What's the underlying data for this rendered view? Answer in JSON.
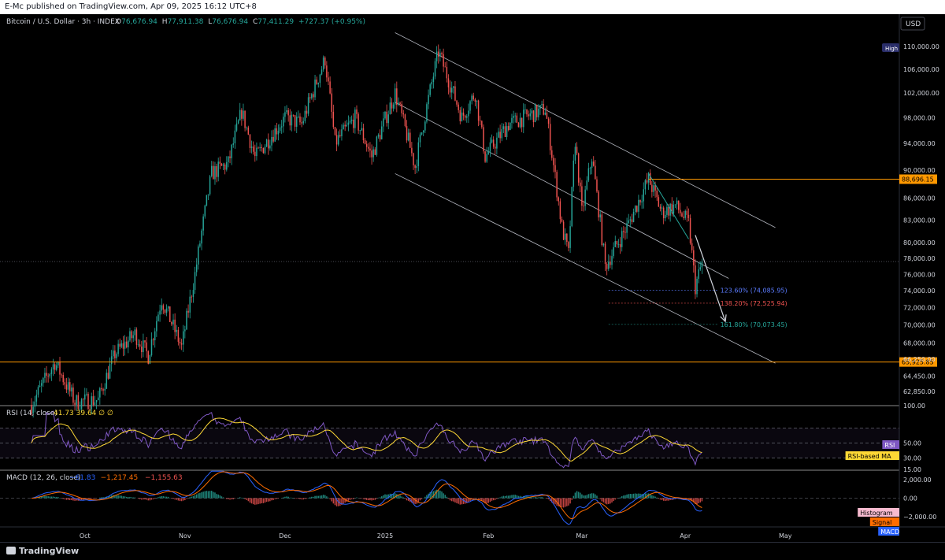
{
  "publisher": "E-Mc published on TradingView.com, Apr 09, 2025 16:12 UTC+8",
  "header": {
    "symbol": "Bitcoin / U.S. Dollar · 3h · INDEX",
    "o_label": "O",
    "o": "76,676.94",
    "h_label": "H",
    "h": "77,911.38",
    "l_label": "L",
    "l": "76,676.94",
    "c_label": "C",
    "c": "77,411.29",
    "change": "+727.37 (+0.95%)"
  },
  "currency": "USD",
  "brand": "TradingView",
  "colors": {
    "bg": "#000000",
    "up": "#26a69a",
    "down": "#ef5350",
    "orange": "#ff9800",
    "fib_blue": "#5b7cff",
    "fib_red": "#ef5350",
    "fib_green": "#26a69a",
    "rsi": "#7e57c2",
    "rsi_ma": "#fdd835",
    "macd": "#2962ff",
    "signal": "#ff6d00"
  },
  "chart_data": [
    {
      "type": "candlestick",
      "title": "Bitcoin / U.S. Dollar · 3h · INDEX",
      "x_labels": [
        "Oct",
        "Nov",
        "Dec",
        "2025",
        "Feb",
        "Mar",
        "Apr",
        "May"
      ],
      "y_tick_labels": [
        "110,000.00",
        "106,000.00",
        "102,000.00",
        "98,000.00",
        "94,000.00",
        "90,000.00",
        "86,000.00",
        "83,000.00",
        "80,000.00",
        "78,000.00",
        "76,000.00",
        "74,000.00",
        "72,000.00",
        "70,000.00",
        "68,000.00",
        "66,250.00",
        "64,450.00",
        "62,850.00"
      ],
      "ylim": [
        61500,
        113000
      ],
      "scale": "log",
      "price_path": [
        [
          "2024-09-20",
          61500
        ],
        [
          "2024-09-27",
          65900
        ],
        [
          "2024-10-03",
          61800
        ],
        [
          "2024-10-10",
          62000
        ],
        [
          "2024-10-15",
          66800
        ],
        [
          "2024-10-21",
          69000
        ],
        [
          "2024-10-25",
          66600
        ],
        [
          "2024-10-29",
          73000
        ],
        [
          "2024-11-04",
          67500
        ],
        [
          "2024-11-08",
          76000
        ],
        [
          "2024-11-13",
          89500
        ],
        [
          "2024-11-18",
          91000
        ],
        [
          "2024-11-22",
          99000
        ],
        [
          "2024-11-26",
          91800
        ],
        [
          "2024-12-05",
          98000
        ],
        [
          "2024-12-10",
          97000
        ],
        [
          "2024-12-17",
          107800
        ],
        [
          "2024-12-20",
          94000
        ],
        [
          "2024-12-26",
          98000
        ],
        [
          "2024-12-31",
          92000
        ],
        [
          "2025-01-07",
          102000
        ],
        [
          "2025-01-13",
          90500
        ],
        [
          "2025-01-20",
          109000
        ],
        [
          "2025-01-27",
          98000
        ],
        [
          "2025-01-31",
          102000
        ],
        [
          "2025-02-03",
          92000
        ],
        [
          "2025-02-10",
          97000
        ],
        [
          "2025-02-21",
          99400
        ],
        [
          "2025-02-26",
          82000
        ],
        [
          "2025-02-28",
          78500
        ],
        [
          "2025-03-02",
          94500
        ],
        [
          "2025-03-04",
          84000
        ],
        [
          "2025-03-07",
          92000
        ],
        [
          "2025-03-11",
          77000
        ],
        [
          "2025-03-18",
          82500
        ],
        [
          "2025-03-24",
          88700
        ],
        [
          "2025-03-28",
          84000
        ],
        [
          "2025-04-01",
          85000
        ],
        [
          "2025-04-05",
          82500
        ],
        [
          "2025-04-07",
          74500
        ],
        [
          "2025-04-09",
          77411
        ]
      ],
      "high_tag": "High",
      "price_lines": [
        {
          "label": "88,696.15",
          "value": 88696.15,
          "color": "#ff9800"
        },
        {
          "label": "65,925.85",
          "value": 65925.85,
          "color": "#ff9800"
        }
      ],
      "fib_levels": [
        {
          "label": "123.60% (74,085.95)",
          "value": 74085.95,
          "color": "#5b7cff"
        },
        {
          "label": "138.20% (72,525.94)",
          "value": 72525.94,
          "color": "#ef5350"
        },
        {
          "label": "161.80% (70,073.45)",
          "value": 70073.45,
          "color": "#26a69a"
        }
      ],
      "channel": {
        "upper": [
          [
            "2025-01-07",
            112500
          ],
          [
            "2025-05-01",
            82000
          ]
        ],
        "middle": [
          [
            "2025-01-07",
            100500
          ],
          [
            "2025-04-17",
            75500
          ]
        ],
        "lower": [
          [
            "2025-01-07",
            89500
          ],
          [
            "2025-05-01",
            65800
          ]
        ]
      },
      "projection_arrow": [
        [
          "2025-04-07",
          81000
        ],
        [
          "2025-04-16",
          70400
        ]
      ]
    },
    {
      "type": "line",
      "title": "RSI (14, close)",
      "values_text": "41.73 39.64 ∅ ∅",
      "y_tick_labels": [
        "100.00",
        "50.00",
        "30.00",
        "15.00"
      ],
      "ylim": [
        15,
        100
      ],
      "bands": [
        70,
        50,
        30
      ],
      "series": [
        {
          "name": "RSI"
        },
        {
          "name": "RSI-based MA"
        }
      ]
    },
    {
      "type": "line",
      "title": "MACD (12, 26, close)",
      "values": [
        "−61.83",
        "−1,217.45",
        "−1,155.63"
      ],
      "y_tick_labels": [
        "2,000.00",
        "0.00",
        "−2,000.00"
      ],
      "ylim": [
        -3000,
        3000
      ],
      "series": [
        {
          "name": "Histogram"
        },
        {
          "name": "Signal"
        },
        {
          "name": "MACD"
        }
      ]
    }
  ]
}
